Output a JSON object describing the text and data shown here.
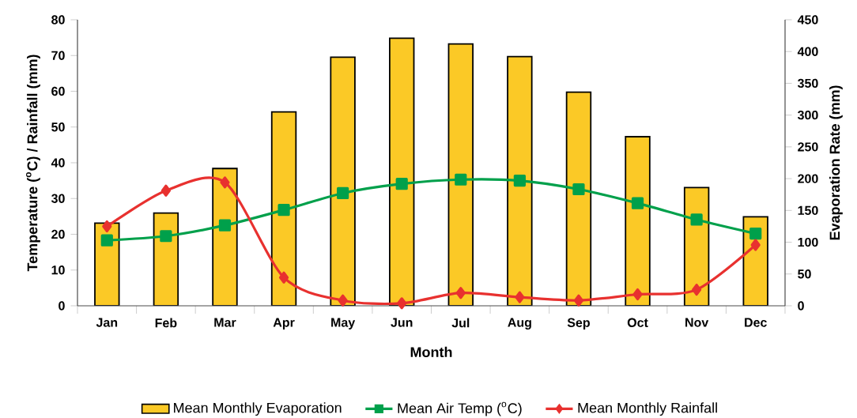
{
  "chart_data": {
    "type": "bar",
    "xlabel": "Month",
    "ylabel": "Temperature ($^{o}$C) / Rainfall (mm)",
    "y2label": "Evaporation Rate (mm)",
    "categories": [
      "Jan",
      "Feb",
      "Mar",
      "Apr",
      "May",
      "Jun",
      "Jul",
      "Aug",
      "Sep",
      "Oct",
      "Nov",
      "Dec"
    ],
    "series": [
      {
        "name": "Mean Monthly Evaporation",
        "axis": "y2",
        "color": "#fbc926",
        "values": [
          130,
          146,
          216,
          305,
          391,
          421,
          412,
          392,
          336,
          266,
          186,
          140
        ]
      },
      {
        "name": "Mean Air Temp ($^{o}$C)",
        "type": "line",
        "marker": "square",
        "color": "#00a04b",
        "values": [
          18.3,
          19.5,
          22.5,
          26.8,
          31.5,
          34.1,
          35.3,
          35.0,
          32.6,
          28.7,
          24.1,
          20.2
        ]
      },
      {
        "name": "Mean Monthly Rainfall",
        "type": "line",
        "marker": "diamond",
        "color": "#e8312f",
        "values": [
          22.2,
          32.2,
          34.5,
          7.9,
          1.5,
          0.7,
          3.6,
          2.4,
          1.5,
          3.2,
          4.5,
          17.0
        ]
      }
    ],
    "ylim": [
      0,
      80
    ],
    "yticks": [
      0,
      10,
      20,
      30,
      40,
      50,
      60,
      70,
      80
    ],
    "y2lim": [
      0,
      450
    ],
    "y2ticks": [
      0,
      50,
      100,
      150,
      200,
      250,
      300,
      350,
      400,
      450
    ],
    "grid": false,
    "legend": "bottom"
  }
}
